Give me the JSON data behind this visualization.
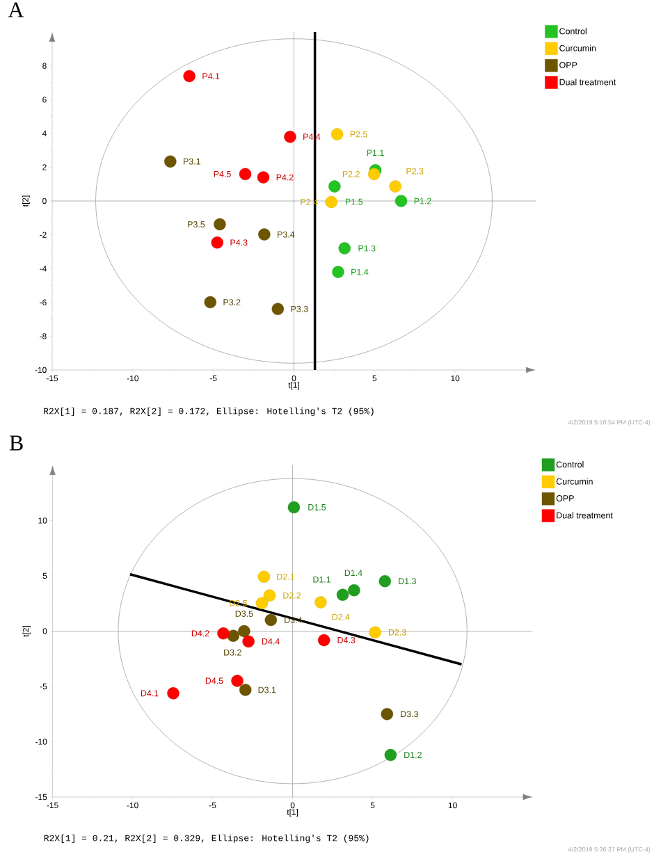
{
  "chart_data": [
    {
      "type": "scatter",
      "title": "A",
      "xlabel": "t[1]",
      "ylabel": "t[2]",
      "xlim": [
        -15,
        15
      ],
      "ylim": [
        -10,
        10
      ],
      "xticks": [
        -15,
        -10,
        -5,
        0,
        5,
        10
      ],
      "yticks": [
        -10,
        -8,
        -6,
        -4,
        -2,
        0,
        2,
        4,
        6,
        8
      ],
      "legend": "top right",
      "grid": false,
      "series": [
        {
          "name": "Control",
          "color": "#22c322",
          "x": [
            5.05,
            6.65,
            3.14,
            2.74,
            2.52
          ],
          "values": [
            1.82,
            0,
            -2.8,
            -4.2,
            0.86
          ]
        },
        {
          "name": "Curcumin",
          "color": "#ffcc00",
          "x": [
            4.97,
            6.29,
            2.32,
            2.68
          ],
          "values": [
            1.59,
            0.86,
            -0.06,
            3.95
          ]
        },
        {
          "name": "OPP",
          "color": "#6e5500",
          "x": [
            -7.67,
            -5.19,
            -1.0,
            -1.84,
            -4.6
          ],
          "values": [
            2.34,
            -5.99,
            -6.39,
            -1.98,
            -1.38
          ]
        },
        {
          "name": "Dual treatment",
          "color": "#ff0000",
          "x": [
            -6.49,
            -1.9,
            -4.76,
            -0.24,
            -3.02
          ],
          "values": [
            7.39,
            1.4,
            -2.46,
            3.8,
            1.59
          ]
        }
      ],
      "ref_lines": [
        {
          "axis": "x",
          "value": 0,
          "color": "#a0a0a0"
        },
        {
          "axis": "y",
          "value": 0,
          "color": "#a0a0a0"
        },
        {
          "axis": "x",
          "value": 1.3,
          "color": "#000000"
        }
      ],
      "annotations": [
        {
          "text": "P1.1",
          "x": 5.05,
          "y": 1.82
        },
        {
          "text": "P1.2",
          "x": 6.65,
          "y": 0
        },
        {
          "text": "P1.3",
          "x": 3.14,
          "y": -2.8
        },
        {
          "text": "P1.4",
          "x": 2.74,
          "y": -4.2
        },
        {
          "text": "P1.5",
          "x": 2.52,
          "y": 0.86
        },
        {
          "text": "P2.2",
          "x": 4.97,
          "y": 1.59
        },
        {
          "text": "P2.3",
          "x": 6.29,
          "y": 0.86
        },
        {
          "text": "P2.4",
          "x": 2.32,
          "y": -0.06
        },
        {
          "text": "P2.5",
          "x": 2.68,
          "y": 3.95
        },
        {
          "text": "P3.1",
          "x": -7.67,
          "y": 2.34
        },
        {
          "text": "P3.2",
          "x": -5.19,
          "y": -5.99
        },
        {
          "text": "P3.3",
          "x": -1.0,
          "y": -6.39
        },
        {
          "text": "P3.4",
          "x": -1.84,
          "y": -1.98
        },
        {
          "text": "P3.5",
          "x": -4.6,
          "y": -1.38
        },
        {
          "text": "P4.1",
          "x": -6.49,
          "y": 7.39
        },
        {
          "text": "P4.2",
          "x": -1.9,
          "y": 1.4
        },
        {
          "text": "P4.3",
          "x": -4.76,
          "y": -2.46
        },
        {
          "text": "P4.4",
          "x": -0.24,
          "y": 3.8
        },
        {
          "text": "P4.5",
          "x": -3.02,
          "y": 1.59
        },
        "R2X[1] = 0.187, R2X[2] = 0.172, Ellipse: Hotelling's T2 (95%)",
        "4/2/2019 5:10:54 PM (UTC-4)"
      ]
    },
    {
      "type": "scatter",
      "title": "B",
      "xlabel": "t[1]",
      "ylabel": "t[2]",
      "xlim": [
        -15,
        15
      ],
      "ylim": [
        -15,
        15
      ],
      "xticks": [
        -15,
        -10,
        -5,
        0,
        5,
        10
      ],
      "yticks": [
        -15,
        -10,
        -5,
        0,
        5,
        10
      ],
      "legend": "top right",
      "grid": false,
      "series": [
        {
          "name": "Control",
          "color": "#1f9e1f",
          "x": [
            3.13,
            6.12,
            5.77,
            3.84,
            0.08
          ],
          "values": [
            3.29,
            -11.2,
            4.52,
            3.7,
            11.2
          ]
        },
        {
          "name": "Curcumin",
          "color": "#ffcc00",
          "x": [
            -1.79,
            -1.44,
            5.15,
            1.75,
            -1.92
          ],
          "values": [
            4.92,
            3.23,
            -0.11,
            2.61,
            2.53
          ]
        },
        {
          "name": "OPP",
          "color": "#6e5500",
          "x": [
            -2.95,
            -3.71,
            5.9,
            -1.36,
            -3.03
          ],
          "values": [
            -5.31,
            -0.42,
            -7.5,
            1.01,
            0
          ]
        },
        {
          "name": "Dual treatment",
          "color": "#ff0000",
          "x": [
            -7.46,
            -4.33,
            1.96,
            -2.76,
            -3.46
          ],
          "values": [
            -5.62,
            -0.2,
            -0.81,
            -0.93,
            -4.49
          ]
        },
        {
          "type": "line",
          "marker": "none",
          "color": "#000000",
          "x": [
            -10.16,
            10.56
          ],
          "values": [
            5.14,
            -3.0
          ]
        }
      ],
      "ref_lines": [
        {
          "axis": "x",
          "value": 0,
          "color": "#a0a0a0"
        },
        {
          "axis": "y",
          "value": 0,
          "color": "#a0a0a0"
        }
      ],
      "annotations": [
        {
          "text": "D1.1",
          "x": 3.13,
          "y": 3.29
        },
        {
          "text": "D1.2",
          "x": 6.12,
          "y": -11.2
        },
        {
          "text": "D1.3",
          "x": 5.77,
          "y": 4.52
        },
        {
          "text": "D1.4",
          "x": 3.84,
          "y": 3.7
        },
        {
          "text": "D1.5",
          "x": 0.08,
          "y": 11.2
        },
        {
          "text": "D2.1",
          "x": -1.79,
          "y": 4.92
        },
        {
          "text": "D2.2",
          "x": -1.44,
          "y": 3.23
        },
        {
          "text": "D2.3",
          "x": 5.15,
          "y": -0.11
        },
        {
          "text": "D2.4",
          "x": 1.75,
          "y": 2.61
        },
        {
          "text": "D2.5",
          "x": -1.92,
          "y": 2.53
        },
        {
          "text": "D3.1",
          "x": -2.95,
          "y": -5.31
        },
        {
          "text": "D3.2",
          "x": -3.71,
          "y": -0.42
        },
        {
          "text": "D3.3",
          "x": 5.9,
          "y": -7.5
        },
        {
          "text": "D3.4",
          "x": -1.36,
          "y": 1.01
        },
        {
          "text": "D3.5",
          "x": -3.03,
          "y": 0
        },
        {
          "text": "D4.1",
          "x": -7.46,
          "y": -5.62
        },
        {
          "text": "D4.2",
          "x": -4.33,
          "y": -0.2
        },
        {
          "text": "D4.3",
          "x": 1.96,
          "y": -0.81
        },
        {
          "text": "D4.4",
          "x": -2.76,
          "y": -0.93
        },
        {
          "text": "D4.5",
          "x": -3.46,
          "y": -4.49
        },
        "R2X[1] = 0.21, R2X[2] = 0.329, Ellipse: Hotelling's T2 (95%)",
        "4/2/2019 5:36:27 PM (UTC-4)"
      ]
    }
  ]
}
